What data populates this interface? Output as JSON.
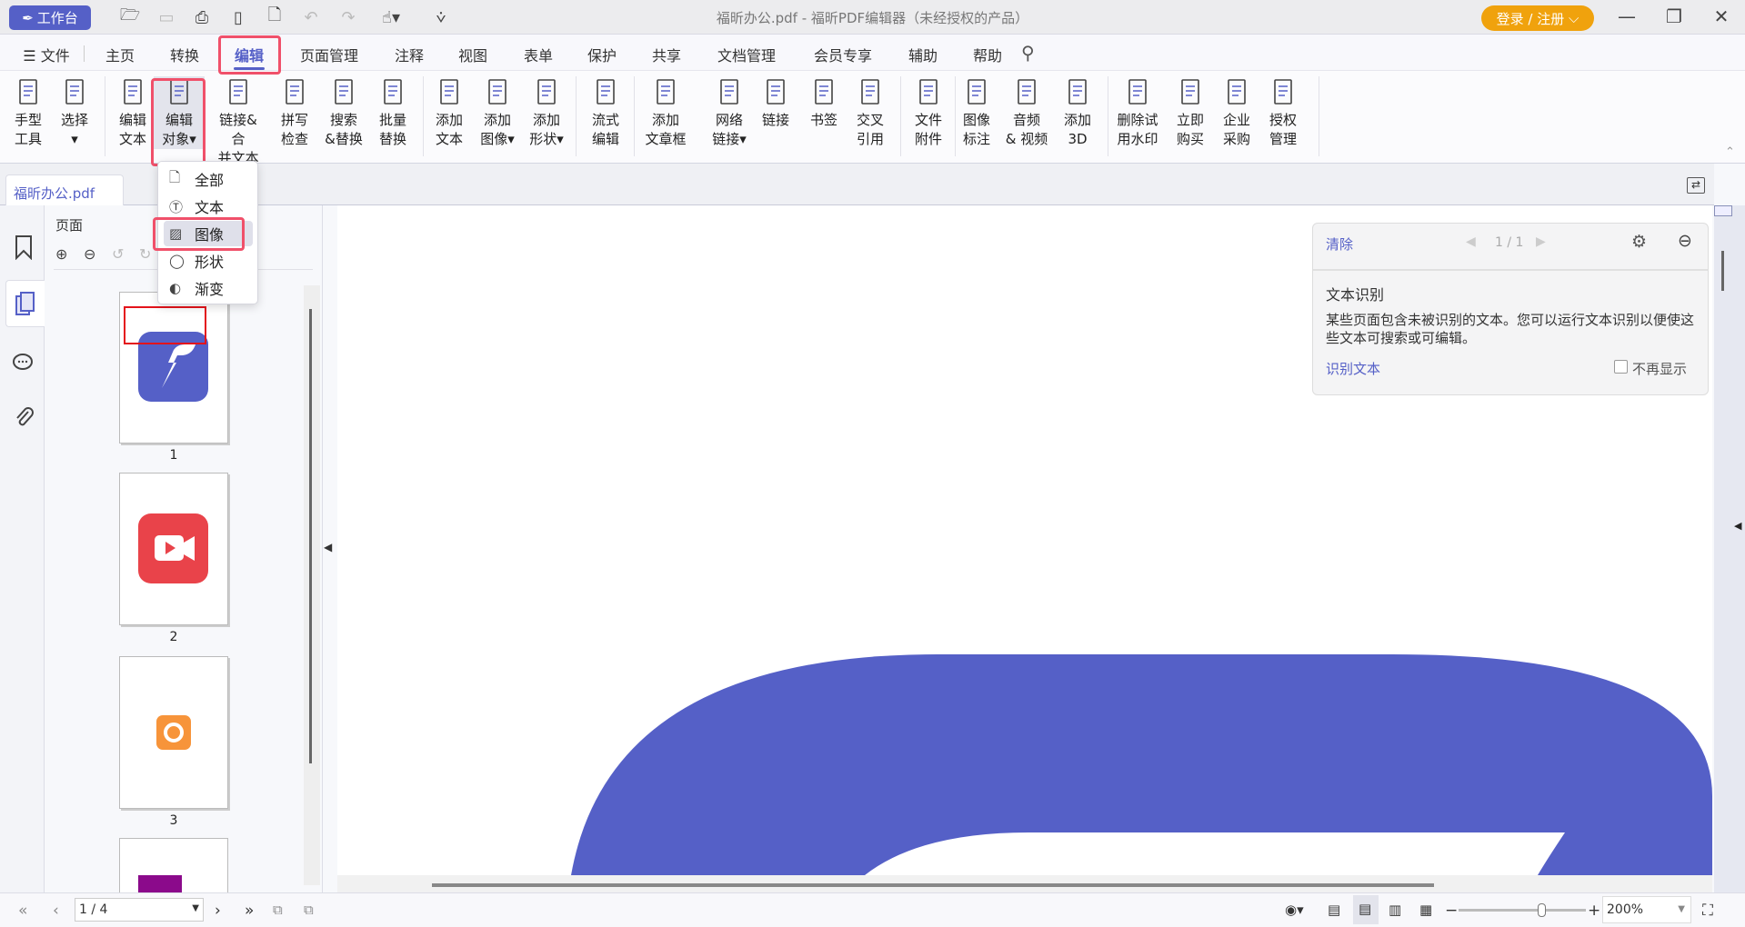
{
  "titlebar": {
    "workbench_label": "工作台",
    "window_title": "福昕办公.pdf - 福昕PDF编辑器（未经授权的产品）",
    "login_label": "登录 / 注册",
    "accent_color": "#5560c7",
    "login_color": "#f0a20d"
  },
  "menu": {
    "file_label": "文件",
    "tabs": [
      "主页",
      "转换",
      "编辑",
      "页面管理",
      "注释",
      "视图",
      "表单",
      "保护",
      "共享",
      "文档管理",
      "会员专享",
      "辅助",
      "帮助"
    ],
    "active_tab": "编辑"
  },
  "ribbon": [
    {
      "l1": "手型",
      "l2": "工具",
      "icon": "hand-icon"
    },
    {
      "l1": "选择",
      "l2": "▾",
      "icon": "select-text-icon"
    },
    {
      "l1": "编辑",
      "l2": "文本",
      "icon": "edit-text-icon"
    },
    {
      "l1": "编辑",
      "l2": "对象▾",
      "icon": "edit-object-icon"
    },
    {
      "l1": "链接&合",
      "l2": "并文本",
      "icon": "link-merge-text-icon"
    },
    {
      "l1": "拼写",
      "l2": "检查",
      "icon": "spell-check-icon"
    },
    {
      "l1": "搜索",
      "l2": "&替换",
      "icon": "search-replace-icon"
    },
    {
      "l1": "批量",
      "l2": "替换",
      "icon": "batch-replace-icon"
    },
    {
      "l1": "添加",
      "l2": "文本",
      "icon": "add-text-icon"
    },
    {
      "l1": "添加",
      "l2": "图像▾",
      "icon": "add-image-icon"
    },
    {
      "l1": "添加",
      "l2": "形状▾",
      "icon": "add-shape-icon"
    },
    {
      "l1": "流式",
      "l2": "编辑",
      "icon": "flow-edit-icon"
    },
    {
      "l1": "添加",
      "l2": "文章框",
      "icon": "article-box-icon"
    },
    {
      "l1": "网络",
      "l2": "链接▾",
      "icon": "web-link-icon"
    },
    {
      "l1": "链接",
      "l2": "",
      "icon": "link-icon"
    },
    {
      "l1": "书签",
      "l2": "",
      "icon": "bookmark-icon"
    },
    {
      "l1": "交叉",
      "l2": "引用",
      "icon": "cross-reference-icon"
    },
    {
      "l1": "文件",
      "l2": "附件",
      "icon": "file-attachment-icon"
    },
    {
      "l1": "图像",
      "l2": "标注",
      "icon": "image-annotation-icon"
    },
    {
      "l1": "音频",
      "l2": "& 视频",
      "icon": "audio-video-icon"
    },
    {
      "l1": "添加",
      "l2": "3D",
      "icon": "add-3d-icon"
    },
    {
      "l1": "删除试",
      "l2": "用水印",
      "icon": "remove-watermark-icon"
    },
    {
      "l1": "立即",
      "l2": "购买",
      "icon": "cart-icon"
    },
    {
      "l1": "企业",
      "l2": "采购",
      "icon": "shopping-bag-icon"
    },
    {
      "l1": "授权",
      "l2": "管理",
      "icon": "license-icon"
    }
  ],
  "edit_object_menu": [
    "全部",
    "文本",
    "图像",
    "形状",
    "渐变"
  ],
  "edit_object_menu_selected": "图像",
  "document_tab": "福昕办公.pdf",
  "pages_panel": {
    "title": "页面",
    "thumbnails": [
      "1",
      "2",
      "3"
    ]
  },
  "ocr_panel": {
    "clear_label": "清除",
    "pager": "1 / 1",
    "title": "文本识别",
    "message": "某些页面包含未被识别的文本。您可以运行文本识别以便使这些文本可搜索或可编辑。",
    "action_label": "识别文本",
    "dont_show_label": "不再显示",
    "dont_show_checked": false
  },
  "statusbar": {
    "page_value": "1 / 4",
    "zoom_value": "200%",
    "zoom_slider_fraction": 0.65
  },
  "document_colors": {
    "logo_blue": "#5560c7",
    "video_red": "#e9434a",
    "orange": "#f7943a",
    "purple": "#8b0a8b"
  }
}
